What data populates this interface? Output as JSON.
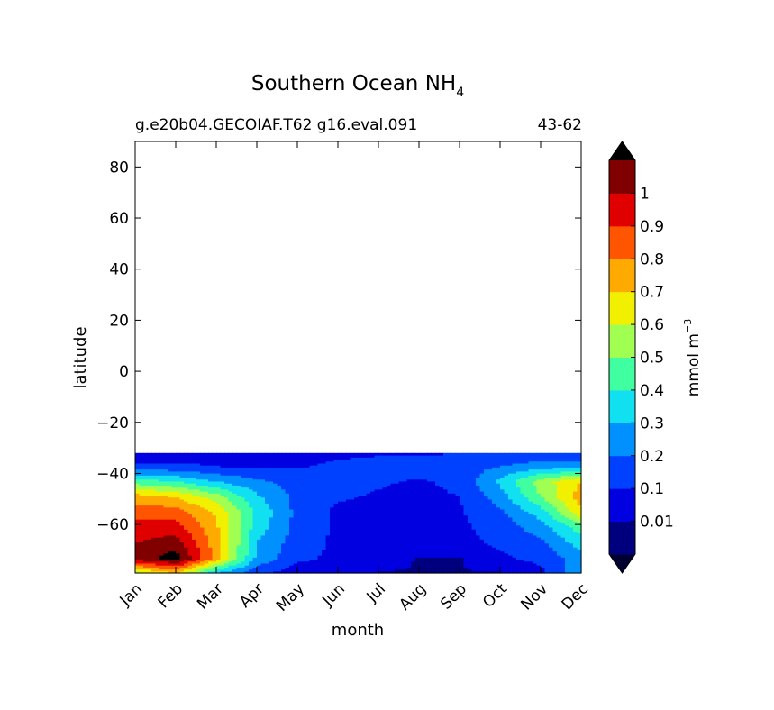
{
  "chart_data": {
    "type": "heatmap",
    "title": "Southern Ocean NH",
    "title_subscript": "4",
    "subtitle_left": "g.e20b04.GECOIAF.T62 g16.eval.091",
    "subtitle_right": "43-62",
    "xlabel": "month",
    "ylabel": "latitude",
    "x_categories": [
      "Jan",
      "Feb",
      "Mar",
      "Apr",
      "May",
      "Jun",
      "Jul",
      "Aug",
      "Sep",
      "Oct",
      "Nov",
      "Dec"
    ],
    "xlim": [
      1,
      12
    ],
    "ylim": [
      -79,
      90
    ],
    "y_ticks": [
      -60,
      -40,
      -20,
      0,
      20,
      40,
      60,
      80
    ],
    "y_tick_labels": [
      "−60",
      "−40",
      "−20",
      "0",
      "20",
      "40",
      "60",
      "80"
    ],
    "data_lat_range": [
      -79,
      -32
    ],
    "grid": false,
    "colorbar": {
      "label": "mmol m",
      "label_superscript": "−3",
      "levels": [
        0,
        0.01,
        0.1,
        0.2,
        0.3,
        0.4,
        0.5,
        0.6,
        0.7,
        0.8,
        0.9,
        1,
        1.1
      ],
      "tick_labels": [
        "0.01",
        "0.1",
        "0.2",
        "0.3",
        "0.4",
        "0.5",
        "0.6",
        "0.7",
        "0.8",
        "0.9",
        "1"
      ],
      "colors": [
        "#00007f",
        "#0000e0",
        "#0040ff",
        "#0090ff",
        "#10e0f0",
        "#40ffa0",
        "#a0ff50",
        "#f0f000",
        "#ffaa00",
        "#ff5500",
        "#e00000",
        "#800000"
      ],
      "under_color": "#000030",
      "over_color": "#000000",
      "extend": "both"
    },
    "field_samples": {
      "lat": [
        -79,
        -73,
        -67,
        -61,
        -55,
        -49,
        -43,
        -37,
        -32
      ],
      "values_by_month": [
        [
          0.55,
          1.05,
          1.0,
          0.95,
          0.85,
          0.75,
          0.45,
          0.12,
          0.05
        ],
        [
          0.7,
          1.15,
          1.05,
          0.95,
          0.85,
          0.7,
          0.4,
          0.12,
          0.05
        ],
        [
          0.3,
          0.75,
          0.75,
          0.72,
          0.68,
          0.55,
          0.3,
          0.1,
          0.05
        ],
        [
          0.12,
          0.28,
          0.3,
          0.35,
          0.38,
          0.32,
          0.22,
          0.08,
          0.05
        ],
        [
          0.05,
          0.12,
          0.15,
          0.17,
          0.17,
          0.17,
          0.16,
          0.09,
          0.05
        ],
        [
          0.05,
          0.08,
          0.08,
          0.08,
          0.08,
          0.11,
          0.15,
          0.12,
          0.08
        ],
        [
          0.005,
          0.05,
          0.06,
          0.07,
          0.08,
          0.09,
          0.11,
          0.14,
          0.09
        ],
        [
          0.005,
          0.005,
          0.05,
          0.06,
          0.07,
          0.08,
          0.09,
          0.14,
          0.09
        ],
        [
          0.005,
          0.005,
          0.07,
          0.08,
          0.09,
          0.1,
          0.12,
          0.15,
          0.1
        ],
        [
          0.005,
          0.08,
          0.12,
          0.14,
          0.18,
          0.25,
          0.32,
          0.2,
          0.12
        ],
        [
          0.07,
          0.13,
          0.18,
          0.25,
          0.35,
          0.5,
          0.55,
          0.25,
          0.12
        ],
        [
          0.3,
          0.25,
          0.35,
          0.45,
          0.68,
          0.75,
          0.7,
          0.25,
          0.12
        ]
      ]
    }
  }
}
